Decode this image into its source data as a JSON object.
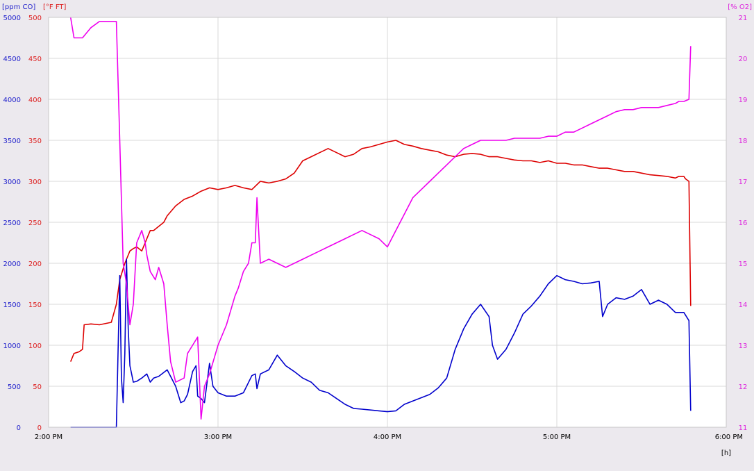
{
  "chart_data": {
    "type": "line",
    "x_unit_label": "[h]",
    "x_ticks": [
      "2:00 PM",
      "3:00 PM",
      "4:00 PM",
      "5:00 PM",
      "6:00 PM"
    ],
    "x_range": [
      14.0,
      18.0
    ],
    "grid": true,
    "axes": [
      {
        "id": "co",
        "label": "[ppm CO]",
        "side": "left-outer",
        "color": "#2222cc",
        "range": [
          0,
          5000
        ],
        "ticks": [
          0,
          500,
          1000,
          1500,
          2000,
          2500,
          3000,
          3500,
          4000,
          4500,
          5000
        ]
      },
      {
        "id": "ft",
        "label": "[°F FT]",
        "side": "left-inner",
        "color": "#dd2222",
        "range": [
          0,
          500
        ],
        "ticks": [
          0,
          50,
          100,
          150,
          200,
          250,
          300,
          350,
          400,
          450,
          500
        ]
      },
      {
        "id": "o2",
        "label": "[% O2]",
        "side": "right",
        "color": "#dd22dd",
        "range": [
          11,
          21
        ],
        "ticks": [
          11,
          12,
          13,
          14,
          15,
          16,
          17,
          18,
          19,
          20,
          21
        ]
      }
    ],
    "series": [
      {
        "axis": "ft",
        "color": "#dd0000",
        "x": [
          14.13,
          14.15,
          14.18,
          14.2,
          14.21,
          14.25,
          14.3,
          14.37,
          14.4,
          14.42,
          14.45,
          14.48,
          14.5,
          14.52,
          14.55,
          14.58,
          14.6,
          14.62,
          14.65,
          14.68,
          14.7,
          14.75,
          14.8,
          14.85,
          14.9,
          14.95,
          15.0,
          15.05,
          15.1,
          15.15,
          15.2,
          15.25,
          15.3,
          15.35,
          15.4,
          15.45,
          15.5,
          15.55,
          15.6,
          15.65,
          15.7,
          15.75,
          15.8,
          15.85,
          15.9,
          15.95,
          16.0,
          16.05,
          16.1,
          16.15,
          16.2,
          16.25,
          16.3,
          16.35,
          16.4,
          16.45,
          16.5,
          16.55,
          16.6,
          16.65,
          16.7,
          16.75,
          16.8,
          16.85,
          16.9,
          16.95,
          17.0,
          17.05,
          17.1,
          17.15,
          17.2,
          17.25,
          17.3,
          17.35,
          17.4,
          17.45,
          17.5,
          17.55,
          17.6,
          17.65,
          17.7,
          17.72,
          17.75,
          17.76,
          17.78,
          17.79
        ],
        "y": [
          80,
          90,
          92,
          95,
          125,
          126,
          125,
          128,
          150,
          180,
          200,
          215,
          218,
          220,
          215,
          230,
          240,
          240,
          245,
          250,
          258,
          270,
          278,
          282,
          288,
          292,
          290,
          292,
          295,
          292,
          290,
          300,
          298,
          300,
          303,
          310,
          325,
          330,
          335,
          340,
          335,
          330,
          333,
          340,
          342,
          345,
          348,
          350,
          345,
          343,
          340,
          338,
          336,
          332,
          330,
          333,
          334,
          333,
          330,
          330,
          328,
          326,
          325,
          325,
          323,
          325,
          322,
          322,
          320,
          320,
          318,
          316,
          316,
          314,
          312,
          312,
          310,
          308,
          307,
          306,
          304,
          306,
          306,
          303,
          300,
          148
        ]
      },
      {
        "axis": "co",
        "color": "#0000cc",
        "x": [
          14.13,
          14.2,
          14.3,
          14.4,
          14.42,
          14.43,
          14.44,
          14.45,
          14.46,
          14.47,
          14.48,
          14.49,
          14.5,
          14.52,
          14.55,
          14.58,
          14.6,
          14.62,
          14.65,
          14.7,
          14.72,
          14.75,
          14.78,
          14.8,
          14.82,
          14.85,
          14.87,
          14.88,
          14.9,
          14.92,
          14.95,
          14.97,
          15.0,
          15.05,
          15.1,
          15.15,
          15.2,
          15.22,
          15.23,
          15.25,
          15.3,
          15.35,
          15.4,
          15.45,
          15.5,
          15.55,
          15.6,
          15.65,
          15.7,
          15.75,
          15.8,
          15.85,
          15.9,
          15.95,
          16.0,
          16.05,
          16.1,
          16.15,
          16.2,
          16.25,
          16.3,
          16.35,
          16.4,
          16.45,
          16.5,
          16.55,
          16.6,
          16.62,
          16.65,
          16.7,
          16.75,
          16.8,
          16.85,
          16.9,
          16.95,
          17.0,
          17.05,
          17.1,
          17.15,
          17.2,
          17.25,
          17.27,
          17.3,
          17.35,
          17.4,
          17.45,
          17.5,
          17.55,
          17.6,
          17.65,
          17.7,
          17.75,
          17.78,
          17.79
        ],
        "y": [
          0,
          0,
          0,
          0,
          1850,
          600,
          300,
          900,
          2050,
          1200,
          750,
          650,
          550,
          560,
          600,
          650,
          550,
          600,
          620,
          700,
          620,
          500,
          300,
          320,
          400,
          680,
          750,
          380,
          350,
          300,
          780,
          500,
          420,
          380,
          380,
          420,
          630,
          650,
          470,
          650,
          700,
          880,
          750,
          680,
          600,
          550,
          450,
          420,
          350,
          280,
          230,
          220,
          210,
          200,
          190,
          200,
          280,
          320,
          360,
          400,
          480,
          600,
          950,
          1200,
          1380,
          1500,
          1350,
          1000,
          830,
          950,
          1150,
          1380,
          1480,
          1600,
          1750,
          1850,
          1800,
          1780,
          1750,
          1760,
          1780,
          1350,
          1500,
          1580,
          1560,
          1600,
          1680,
          1500,
          1550,
          1500,
          1400,
          1400,
          1300,
          200
        ]
      },
      {
        "axis": "o2",
        "color": "#ee00ee",
        "x": [
          14.13,
          14.15,
          14.2,
          14.25,
          14.3,
          14.35,
          14.4,
          14.42,
          14.44,
          14.46,
          14.48,
          14.5,
          14.52,
          14.55,
          14.57,
          14.58,
          14.6,
          14.63,
          14.65,
          14.68,
          14.7,
          14.72,
          14.75,
          14.8,
          14.82,
          14.85,
          14.88,
          14.9,
          14.92,
          14.95,
          15.0,
          15.05,
          15.1,
          15.12,
          15.15,
          15.18,
          15.2,
          15.22,
          15.23,
          15.25,
          15.3,
          15.35,
          15.4,
          15.45,
          15.5,
          15.55,
          15.6,
          15.65,
          15.7,
          15.75,
          15.8,
          15.85,
          15.9,
          15.95,
          16.0,
          16.05,
          16.1,
          16.15,
          16.2,
          16.25,
          16.3,
          16.35,
          16.4,
          16.45,
          16.5,
          16.55,
          16.6,
          16.65,
          16.7,
          16.75,
          16.8,
          16.85,
          16.9,
          16.95,
          17.0,
          17.05,
          17.1,
          17.15,
          17.2,
          17.25,
          17.3,
          17.35,
          17.4,
          17.45,
          17.5,
          17.55,
          17.6,
          17.65,
          17.7,
          17.72,
          17.75,
          17.78,
          17.79
        ],
        "y": [
          21.0,
          20.5,
          20.5,
          20.75,
          20.9,
          20.9,
          20.9,
          18.0,
          15.0,
          14.5,
          13.5,
          14.0,
          15.5,
          15.8,
          15.5,
          15.2,
          14.8,
          14.6,
          14.9,
          14.5,
          13.5,
          12.6,
          12.1,
          12.2,
          12.8,
          13.0,
          13.2,
          11.2,
          12.0,
          12.3,
          13.0,
          13.5,
          14.2,
          14.4,
          14.8,
          15.0,
          15.5,
          15.5,
          16.6,
          15.0,
          15.1,
          15.0,
          14.9,
          15.0,
          15.1,
          15.2,
          15.3,
          15.4,
          15.5,
          15.6,
          15.7,
          15.8,
          15.7,
          15.6,
          15.4,
          15.8,
          16.2,
          16.6,
          16.8,
          17.0,
          17.2,
          17.4,
          17.6,
          17.8,
          17.9,
          18.0,
          18.0,
          18.0,
          18.0,
          18.05,
          18.05,
          18.05,
          18.05,
          18.1,
          18.1,
          18.2,
          18.2,
          18.3,
          18.4,
          18.5,
          18.6,
          18.7,
          18.75,
          18.75,
          18.8,
          18.8,
          18.8,
          18.85,
          18.9,
          18.95,
          18.95,
          19.0,
          20.3
        ]
      }
    ]
  }
}
